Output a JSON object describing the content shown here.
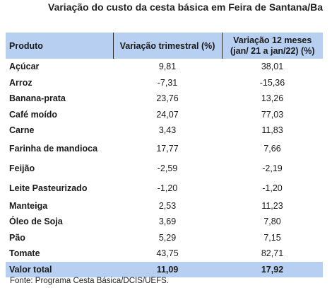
{
  "title": "Variação do custo da cesta básica em Feira de Santana/Ba",
  "table": {
    "headers": {
      "product": "Produto",
      "quarterly": "Variação trimestral (%)",
      "annual_line1": "Variação 12 meses",
      "annual_line2": "(jan/ 21 a jan/22) (%)"
    },
    "rows": [
      {
        "product": "Açúcar",
        "quarterly": "9,81",
        "annual": "38,01"
      },
      {
        "product": "Arroz",
        "quarterly": "-7,31",
        "annual": "-15,36"
      },
      {
        "product": "Banana-prata",
        "quarterly": "23,76",
        "annual": "13,26"
      },
      {
        "product": "Café moído",
        "quarterly": "24,07",
        "annual": "77,03"
      },
      {
        "product": "Carne",
        "quarterly": "3,43",
        "annual": "11,83"
      },
      {
        "product": "Farinha de mandioca",
        "quarterly": "17,77",
        "annual": "7,66"
      },
      {
        "product": "Feijão",
        "quarterly": "-2,59",
        "annual": "-2,19"
      },
      {
        "product": "Leite Pasteurizado",
        "quarterly": "-1,20",
        "annual": "-1,20"
      },
      {
        "product": "Manteiga",
        "quarterly": "2,53",
        "annual": "11,23"
      },
      {
        "product": "Óleo de Soja",
        "quarterly": "3,69",
        "annual": "7,80"
      },
      {
        "product": "Pão",
        "quarterly": "5,29",
        "annual": "7,15"
      },
      {
        "product": "Tomate",
        "quarterly": "43,75",
        "annual": "82,71"
      }
    ],
    "total": {
      "product": "Valor total",
      "quarterly": "11,09",
      "annual": "17,92"
    }
  },
  "source": "Fonte: Programa Cesta Básica/DCIS/UEFS.",
  "colors": {
    "header_bg": "#b7cff0",
    "rule": "#2b2b2b"
  }
}
